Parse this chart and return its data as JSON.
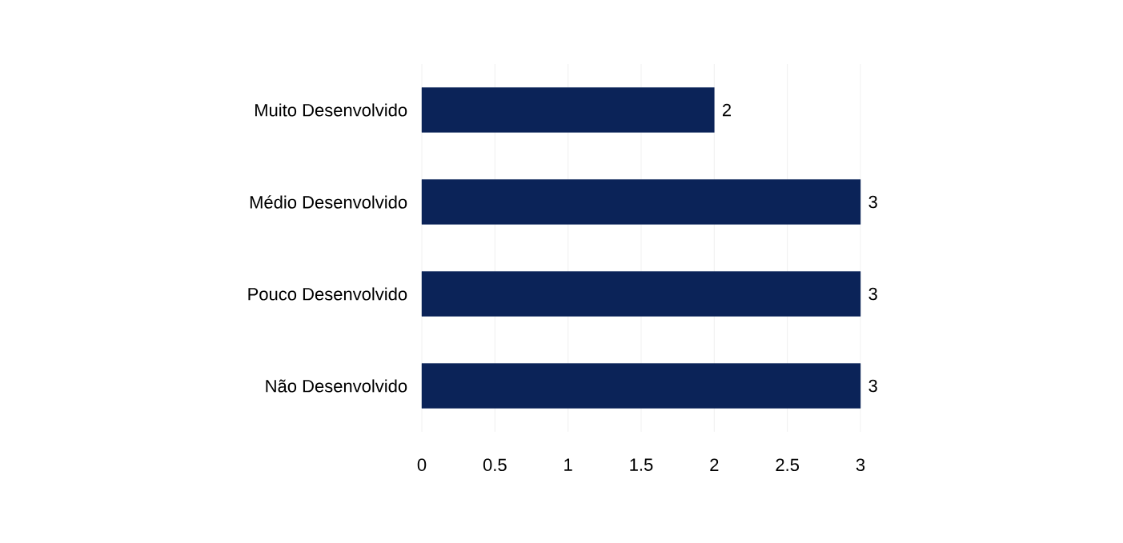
{
  "chart_data": {
    "type": "bar",
    "orientation": "horizontal",
    "categories": [
      "Muito Desenvolvido",
      "Médio Desenvolvido",
      "Pouco Desenvolvido",
      "Não Desenvolvido"
    ],
    "values": [
      2,
      3,
      3,
      3
    ],
    "color": "#0b2358",
    "xlim": [
      0,
      3
    ],
    "xticks": [
      0,
      0.5,
      1,
      1.5,
      2,
      2.5,
      3
    ],
    "grid": "x",
    "data_labels": true
  }
}
